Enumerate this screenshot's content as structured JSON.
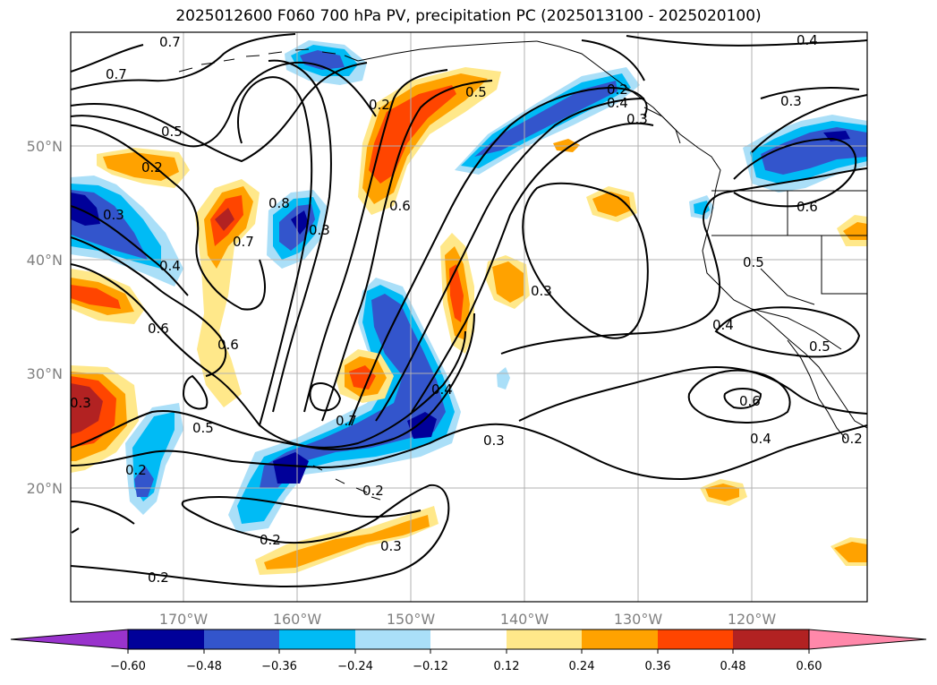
{
  "title": "2025012600 F060 700 hPa PV, precipitation PC (2025013100 - 2025020100)",
  "lat_labels": [
    "50°N",
    "40°N",
    "30°N",
    "20°N"
  ],
  "lon_labels": [
    "170°W",
    "160°W",
    "150°W",
    "140°W",
    "130°W",
    "120°W"
  ],
  "contour_labels": [
    "0.7",
    "0.7",
    "0.5",
    "0.2",
    "0.5",
    "0.2",
    "0.3",
    "0.4",
    "0.6",
    "0.8",
    "0.3",
    "0.7",
    "0.6",
    "0.6",
    "0.5",
    "0.2",
    "0.2",
    "0.7",
    "0.4",
    "0.3",
    "0.2",
    "0.3",
    "0.4",
    "0.3",
    "0.3",
    "0.6",
    "0.5",
    "0.4",
    "0.6",
    "0.4",
    "0.5",
    "0.2",
    "0.2",
    "0.3",
    "0.2",
    "0.4",
    "0.3"
  ],
  "colorbar": {
    "ticks": [
      "−0.60",
      "−0.48",
      "−0.36",
      "−0.24",
      "−0.12",
      "0.12",
      "0.24",
      "0.36",
      "0.48",
      "0.60"
    ],
    "colors": [
      "#9933cc",
      "#000099",
      "#3355cc",
      "#00bbf5",
      "#aadff8",
      "#ffffff",
      "#ffe88a",
      "#ffa200",
      "#ff4500",
      "#b22222",
      "#ff88aa"
    ]
  },
  "fill_colors": {
    "neg1": "#aadff8",
    "neg2": "#00bbf5",
    "neg3": "#3355cc",
    "neg4": "#000099",
    "pos1": "#ffe88a",
    "pos2": "#ffa200",
    "pos3": "#ff4500",
    "pos4": "#b22222"
  }
}
